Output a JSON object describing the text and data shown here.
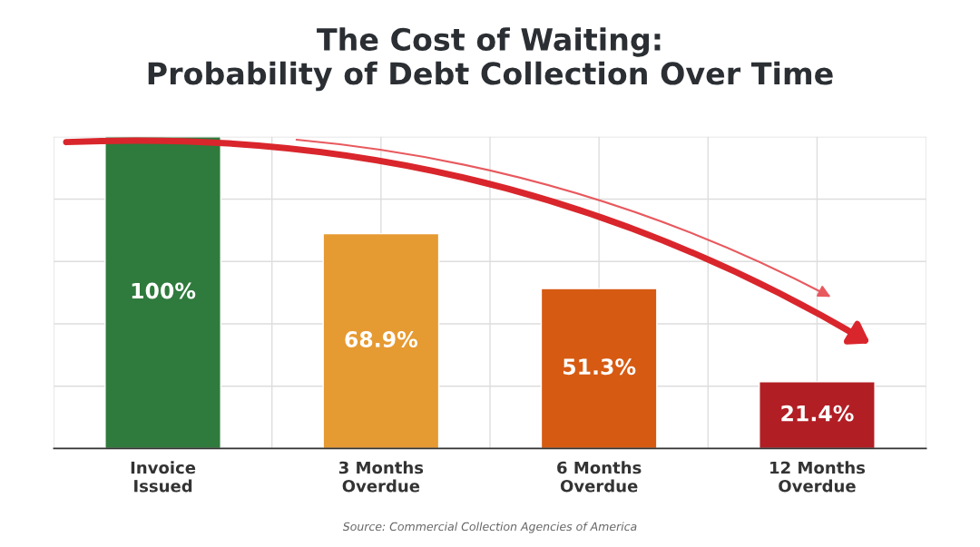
{
  "chart_data": {
    "type": "bar",
    "title": "The Cost of Waiting:\nProbability of Debt Collection Over Time",
    "categories": [
      "Invoice Issued",
      "3 Months Overdue",
      "6 Months Overdue",
      "12 Months Overdue"
    ],
    "values": [
      100,
      68.9,
      51.3,
      21.4
    ],
    "colors": [
      "#2f7a3d",
      "#e69a32",
      "#d65a12",
      "#b11e24"
    ],
    "value_labels": [
      "100%",
      "68.9%",
      "51.3%",
      "21.4%"
    ],
    "grid": true,
    "tick_labels": "x",
    "annotations": [
      "Source: Commercial Collection Agencies of America"
    ]
  }
}
